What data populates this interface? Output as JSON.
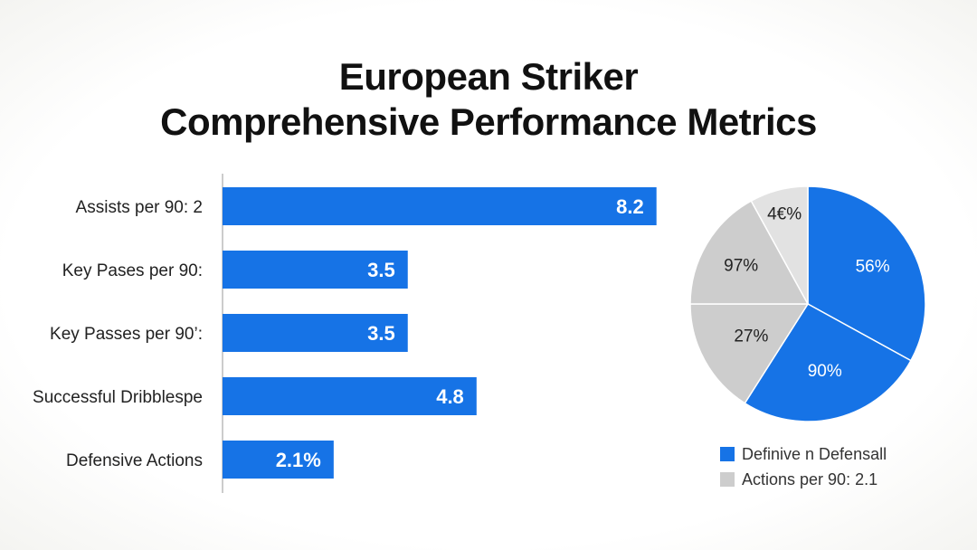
{
  "title": {
    "line1": "European Striker",
    "line2": "Comprehensive Performance Metrics"
  },
  "colors": {
    "blue": "#1673e6",
    "gray": "#cdcdcd",
    "light_gray": "#e2e2e2"
  },
  "chart_data": [
    {
      "type": "bar",
      "orientation": "horizontal",
      "categories": [
        "Assists per 90: 2",
        "Key Pases per 90:",
        "Key Passes per 90’:",
        "Successful Dribblespe",
        "Defensive Actions"
      ],
      "values": [
        8.2,
        3.5,
        3.5,
        4.8,
        2.1
      ],
      "data_labels": [
        "8.2",
        "3.5",
        "3.5",
        "4.8",
        "2.1%"
      ],
      "xlim": [
        0,
        10
      ]
    },
    {
      "type": "pie",
      "slices": [
        {
          "label": "56%",
          "value": 33,
          "color": "#1673e6"
        },
        {
          "label": "90%",
          "value": 26,
          "color": "#1673e6"
        },
        {
          "label": "27%",
          "value": 16,
          "color": "#cdcdcd"
        },
        {
          "label": "97%",
          "value": 17,
          "color": "#cdcdcd"
        },
        {
          "label": "4€%",
          "value": 8,
          "color": "#e2e2e2"
        }
      ],
      "legend": {
        "position": "bottom-right",
        "entries": [
          {
            "label": "Definive n Defensall",
            "color": "#1673e6"
          },
          {
            "label": "Actions per 90: 2.1",
            "color": "#cdcdcd"
          }
        ]
      }
    }
  ]
}
